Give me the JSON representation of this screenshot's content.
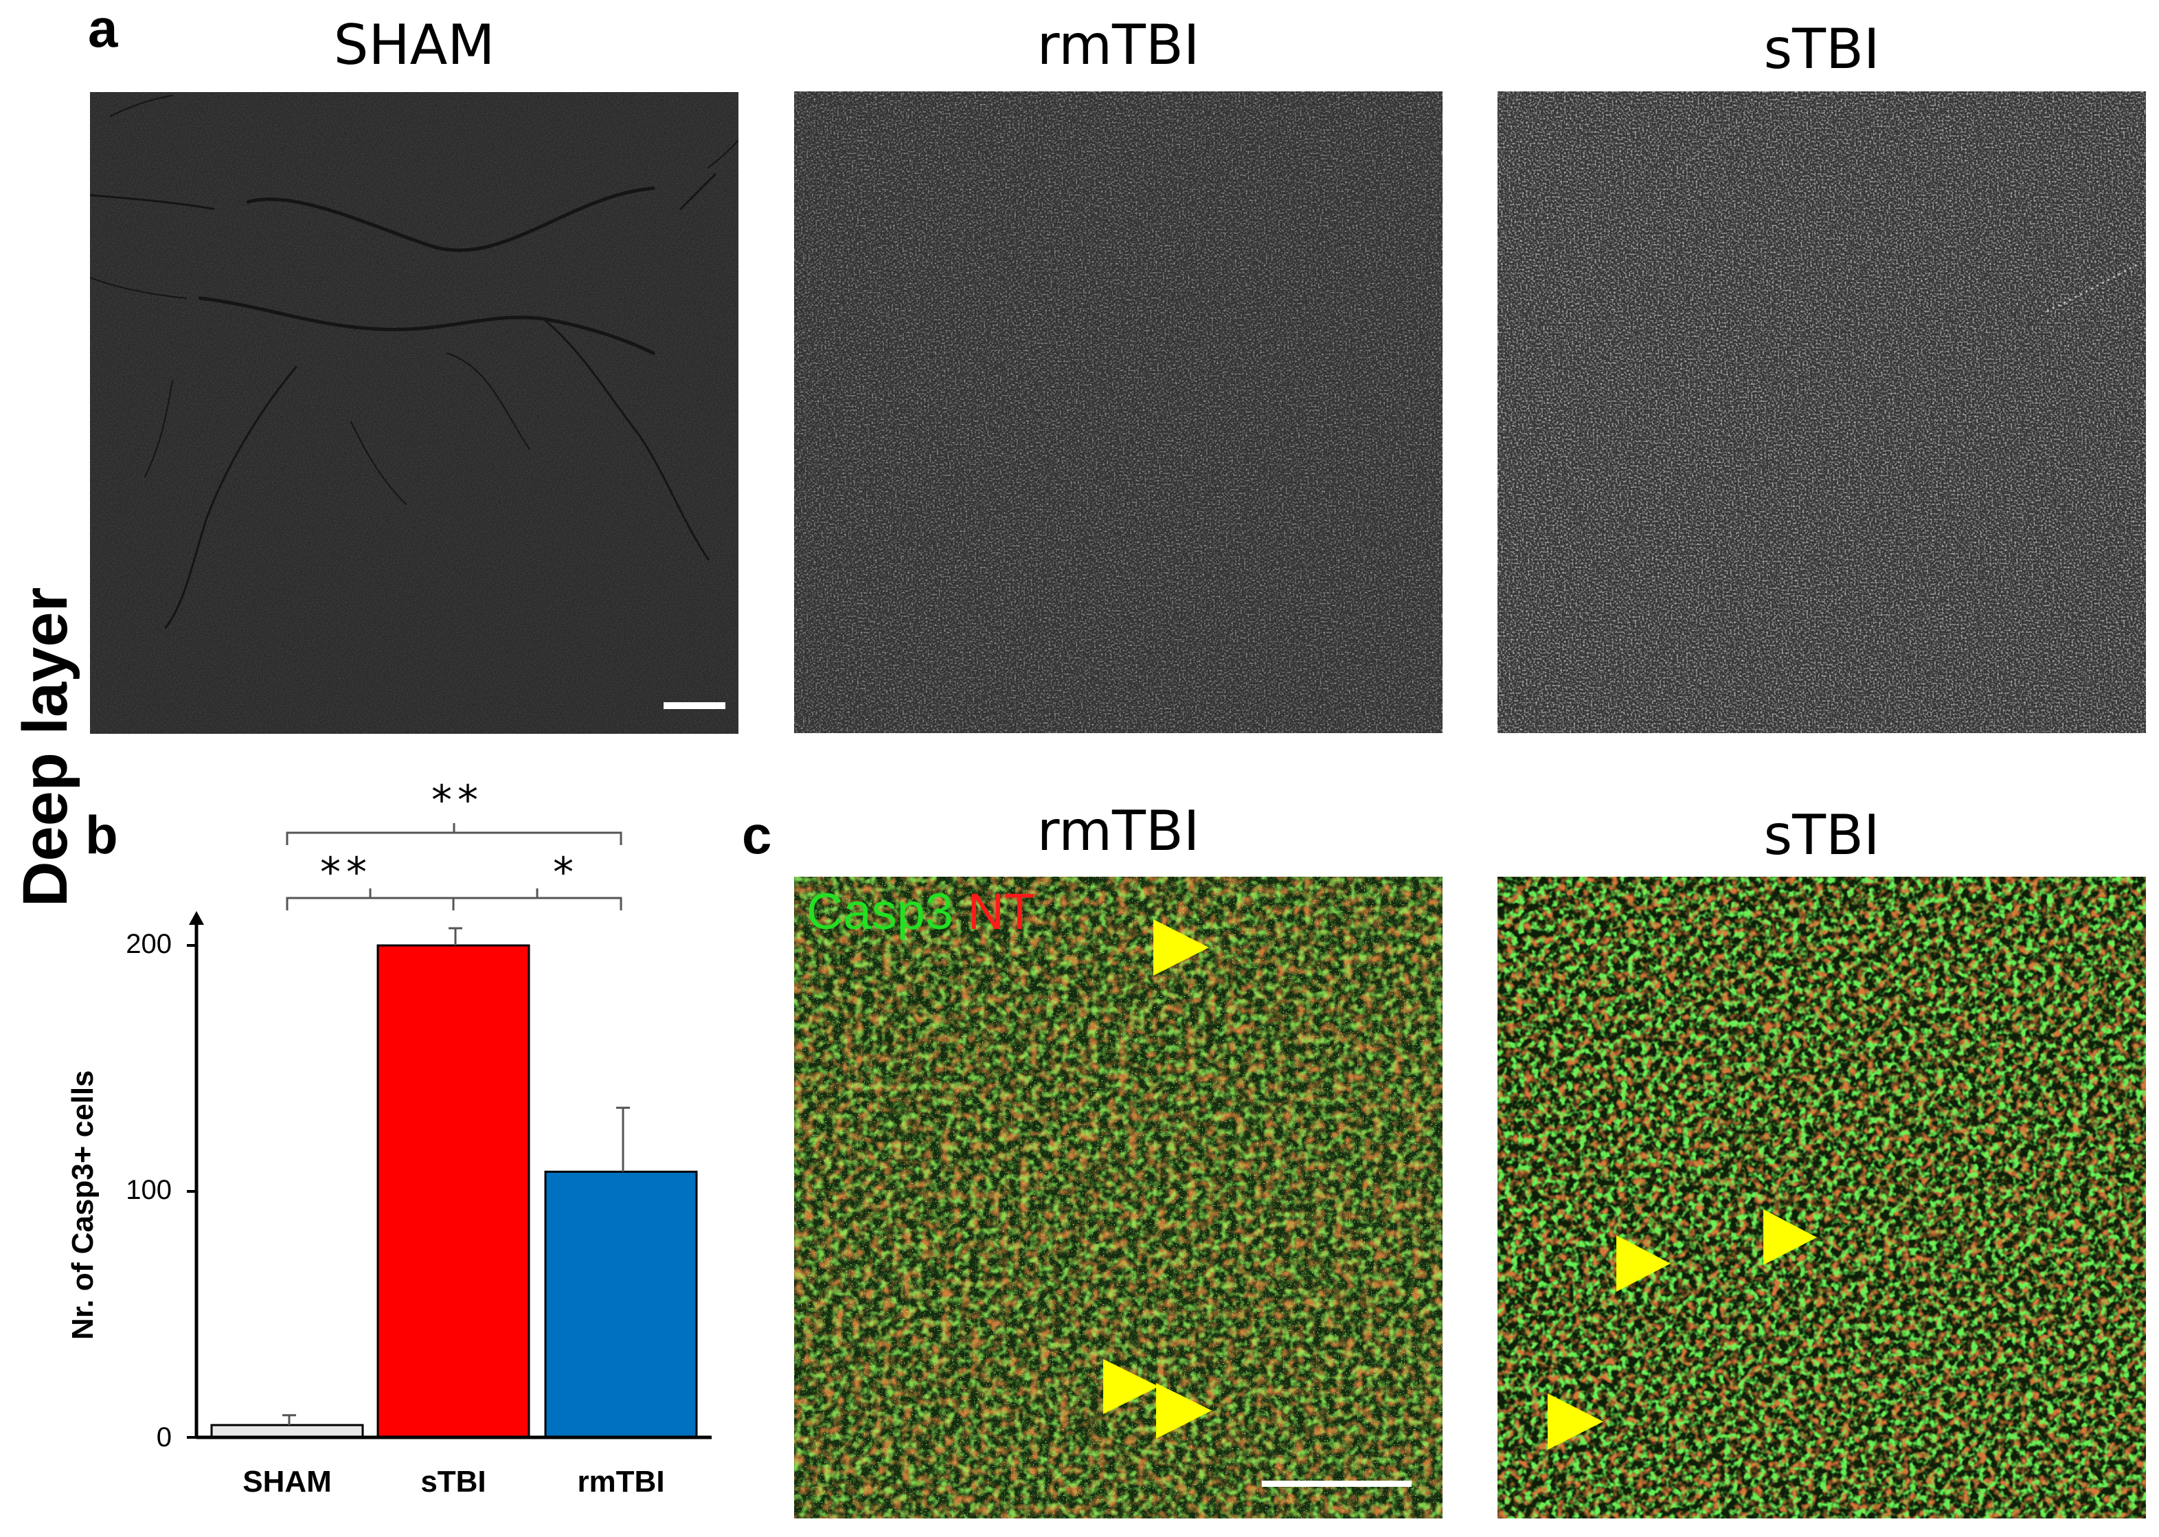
{
  "panel_a": {
    "letter": "a",
    "row_label": "Deep layer",
    "columns": [
      "SHAM",
      "rmTBI",
      "sTBI"
    ]
  },
  "panel_b": {
    "letter": "b",
    "significance": {
      "sham_rmtbi": "**",
      "sham_stbi": "**",
      "stbi_rmtbi": "*"
    }
  },
  "panel_c": {
    "letter": "c",
    "columns": [
      "rmTBI",
      "sTBI"
    ],
    "channel_label_green": "Casp3",
    "channel_label_red": "NT",
    "colors": {
      "green": "#22e022",
      "red": "#ff1a1a",
      "arrow": "#ffff00"
    }
  },
  "chart_data": {
    "type": "bar",
    "categories": [
      "SHAM",
      "sTBI",
      "rmTBI"
    ],
    "values": [
      5,
      200,
      108
    ],
    "errors": [
      4,
      7,
      26
    ],
    "colors": [
      "#e8e8e8",
      "#ff0000",
      "#0070c0"
    ],
    "ylabel": "Nr. of Casp3+ cells",
    "ylim": [
      0,
      200
    ],
    "yticks": [
      0,
      100,
      200
    ]
  }
}
